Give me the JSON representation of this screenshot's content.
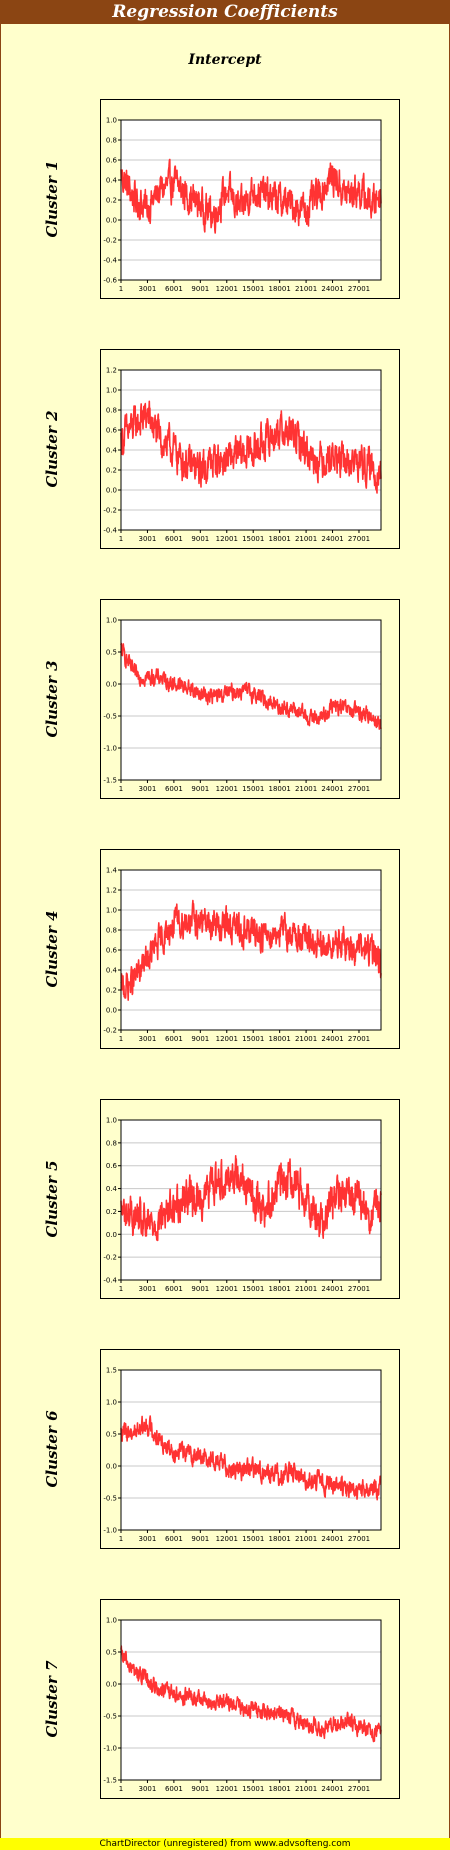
{
  "page": {
    "title": "Regression Coefficients",
    "subtitle": "Intercept",
    "footer": "ChartDirector (unregistered) from www.advsofteng.com"
  },
  "colors": {
    "line": "#ff3333",
    "title_bg": "#8b4513",
    "page_bg": "#ffffcc",
    "footer_bg": "#ffff00"
  },
  "chart_data": [
    {
      "type": "line",
      "title": "Cluster 1",
      "xticks": [
        "1",
        "3001",
        "6001",
        "9001",
        "12001",
        "15001",
        "18001",
        "21001",
        "24001",
        "27001"
      ],
      "xlim": [
        1,
        29500
      ],
      "ylim": [
        -0.6,
        1.0
      ],
      "yticks": [
        "1.0",
        "0.8",
        "0.6",
        "0.4",
        "0.2",
        "0.0",
        "-0.2",
        "-0.4",
        "-0.6"
      ],
      "series": [
        {
          "x": [
            1,
            1500,
            3000,
            4500,
            6000,
            7500,
            9000,
            10500,
            12000,
            13500,
            15000,
            16500,
            18000,
            19500,
            21000,
            22500,
            24000,
            25500,
            27000,
            28500,
            29500
          ],
          "y": [
            0.45,
            0.22,
            0.12,
            0.3,
            0.38,
            0.25,
            0.15,
            0.05,
            0.3,
            0.1,
            0.3,
            0.25,
            0.2,
            0.15,
            0.1,
            0.25,
            0.45,
            0.25,
            0.3,
            0.15,
            0.3
          ],
          "noise": 0.13
        }
      ]
    },
    {
      "type": "line",
      "title": "Cluster 2",
      "xticks": [
        "1",
        "3001",
        "6001",
        "9001",
        "12001",
        "15001",
        "18001",
        "21001",
        "24001",
        "27001"
      ],
      "xlim": [
        1,
        29500
      ],
      "ylim": [
        -0.4,
        1.2
      ],
      "yticks": [
        "1.2",
        "1.0",
        "0.8",
        "0.6",
        "0.4",
        "0.2",
        "0.0",
        "-0.2",
        "-0.4"
      ],
      "series": [
        {
          "x": [
            1,
            1500,
            3000,
            4500,
            6000,
            7500,
            9000,
            10500,
            12000,
            13500,
            15000,
            16500,
            18000,
            19500,
            21000,
            22500,
            24000,
            25500,
            27000,
            28500,
            29500
          ],
          "y": [
            0.5,
            0.65,
            0.75,
            0.5,
            0.4,
            0.25,
            0.2,
            0.3,
            0.3,
            0.35,
            0.4,
            0.5,
            0.6,
            0.55,
            0.4,
            0.3,
            0.35,
            0.25,
            0.3,
            0.2,
            0.2
          ],
          "noise": 0.14
        }
      ]
    },
    {
      "type": "line",
      "title": "Cluster 3",
      "xticks": [
        "1",
        "3001",
        "6001",
        "9001",
        "12001",
        "15001",
        "18001",
        "21001",
        "24001",
        "27001"
      ],
      "xlim": [
        1,
        29500
      ],
      "ylim": [
        -1.5,
        1.0
      ],
      "yticks": [
        "1.0",
        "0.5",
        "0.0",
        "-0.5",
        "-1.0",
        "-1.5"
      ],
      "series": [
        {
          "x": [
            1,
            1500,
            3000,
            4500,
            6000,
            7500,
            9000,
            10500,
            12000,
            13500,
            15000,
            16500,
            18000,
            19500,
            21000,
            22500,
            24000,
            25500,
            27000,
            28500,
            29500
          ],
          "y": [
            0.55,
            0.15,
            0.1,
            0.1,
            0.0,
            -0.05,
            -0.15,
            -0.2,
            -0.15,
            -0.1,
            -0.15,
            -0.25,
            -0.35,
            -0.4,
            -0.5,
            -0.55,
            -0.35,
            -0.4,
            -0.45,
            -0.5,
            -0.65
          ],
          "noise": 0.1
        }
      ]
    },
    {
      "type": "line",
      "title": "Cluster 4",
      "xticks": [
        "1",
        "3001",
        "6001",
        "9001",
        "12001",
        "15001",
        "18001",
        "21001",
        "24001",
        "27001"
      ],
      "xlim": [
        1,
        29500
      ],
      "ylim": [
        -0.2,
        1.4
      ],
      "yticks": [
        "1.4",
        "1.2",
        "1.0",
        "0.8",
        "0.6",
        "0.4",
        "0.2",
        "0.0",
        "-0.2"
      ],
      "series": [
        {
          "x": [
            1,
            1500,
            3000,
            4500,
            6000,
            7500,
            9000,
            10500,
            12000,
            13500,
            15000,
            16500,
            18000,
            19500,
            21000,
            22500,
            24000,
            25500,
            27000,
            28500,
            29500
          ],
          "y": [
            0.2,
            0.3,
            0.5,
            0.7,
            0.85,
            0.9,
            0.88,
            0.85,
            0.85,
            0.8,
            0.78,
            0.75,
            0.8,
            0.75,
            0.7,
            0.6,
            0.65,
            0.65,
            0.6,
            0.6,
            0.45
          ],
          "noise": 0.12
        }
      ]
    },
    {
      "type": "line",
      "title": "Cluster 5",
      "xticks": [
        "1",
        "3001",
        "6001",
        "9001",
        "12001",
        "15001",
        "18001",
        "21001",
        "24001",
        "27001"
      ],
      "xlim": [
        1,
        29500
      ],
      "ylim": [
        -0.4,
        1.0
      ],
      "yticks": [
        "1.0",
        "0.8",
        "0.6",
        "0.4",
        "0.2",
        "0.0",
        "-0.2",
        "-0.4"
      ],
      "series": [
        {
          "x": [
            1,
            1500,
            3000,
            4500,
            6000,
            7500,
            9000,
            10500,
            12000,
            13500,
            15000,
            16500,
            18000,
            19500,
            21000,
            22500,
            24000,
            25500,
            27000,
            28500,
            29500
          ],
          "y": [
            0.2,
            0.15,
            0.05,
            0.15,
            0.25,
            0.35,
            0.3,
            0.45,
            0.5,
            0.55,
            0.3,
            0.25,
            0.45,
            0.5,
            0.35,
            0.1,
            0.3,
            0.35,
            0.3,
            0.15,
            0.25
          ],
          "noise": 0.13
        }
      ]
    },
    {
      "type": "line",
      "title": "Cluster 6",
      "xticks": [
        "1",
        "3001",
        "6001",
        "9001",
        "12001",
        "15001",
        "18001",
        "21001",
        "24001",
        "27001"
      ],
      "xlim": [
        1,
        29500
      ],
      "ylim": [
        -1.0,
        1.5
      ],
      "yticks": [
        "1.5",
        "1.0",
        "0.5",
        "0.0",
        "-0.5",
        "-1.0"
      ],
      "series": [
        {
          "x": [
            1,
            1500,
            3000,
            4500,
            6000,
            7500,
            9000,
            10500,
            12000,
            13500,
            15000,
            16500,
            18000,
            19500,
            21000,
            22500,
            24000,
            25500,
            27000,
            28500,
            29500
          ],
          "y": [
            0.5,
            0.55,
            0.65,
            0.4,
            0.25,
            0.2,
            0.15,
            0.1,
            0.0,
            -0.05,
            -0.05,
            -0.1,
            -0.15,
            -0.1,
            -0.2,
            -0.25,
            -0.3,
            -0.35,
            -0.4,
            -0.35,
            -0.35
          ],
          "noise": 0.12
        }
      ]
    },
    {
      "type": "line",
      "title": "Cluster 7",
      "xticks": [
        "1",
        "3001",
        "6001",
        "9001",
        "12001",
        "15001",
        "18001",
        "21001",
        "24001",
        "27001"
      ],
      "xlim": [
        1,
        29500
      ],
      "ylim": [
        -1.5,
        1.0
      ],
      "yticks": [
        "1.0",
        "0.5",
        "0.0",
        "-0.5",
        "-1.0",
        "-1.5"
      ],
      "series": [
        {
          "x": [
            1,
            1500,
            3000,
            4500,
            6000,
            7500,
            9000,
            10500,
            12000,
            13500,
            15000,
            16500,
            18000,
            19500,
            21000,
            22500,
            24000,
            25500,
            27000,
            28500,
            29500
          ],
          "y": [
            0.45,
            0.2,
            0.05,
            -0.1,
            -0.15,
            -0.2,
            -0.25,
            -0.3,
            -0.3,
            -0.35,
            -0.4,
            -0.45,
            -0.45,
            -0.55,
            -0.6,
            -0.7,
            -0.65,
            -0.6,
            -0.65,
            -0.7,
            -0.8
          ],
          "noise": 0.1
        }
      ]
    }
  ]
}
